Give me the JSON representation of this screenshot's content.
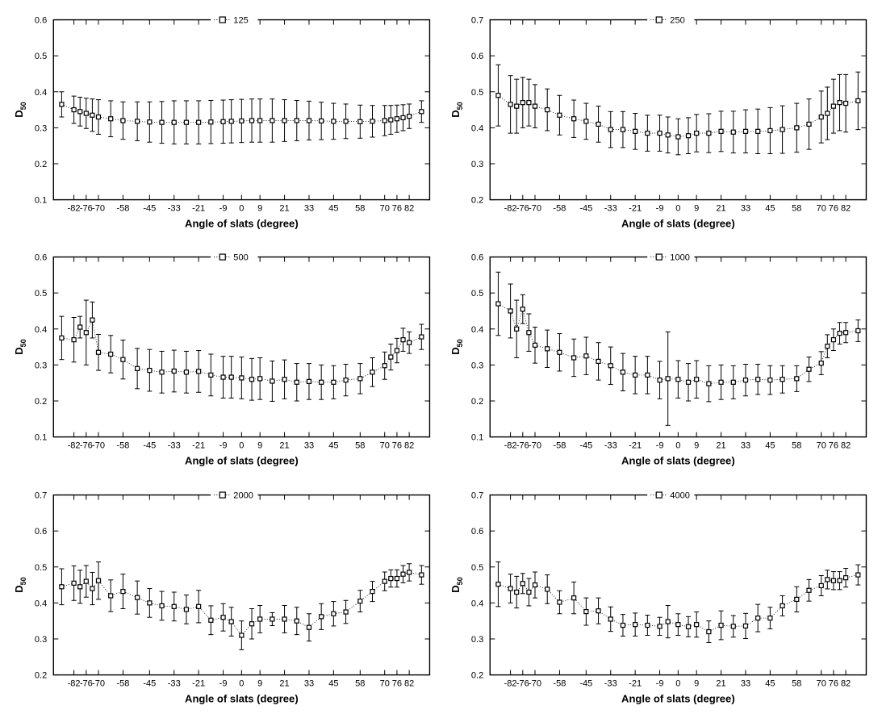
{
  "global": {
    "xlabel": "Angle of slats (degree)",
    "ylabel": "D",
    "ylabel_sub": "50",
    "xtick_labels": [
      "-82",
      "-76",
      "-70",
      "-58",
      "-45",
      "-33",
      "-21",
      "-9",
      "0",
      "9",
      "21",
      "33",
      "45",
      "58",
      "70",
      "76",
      "82"
    ],
    "background_color": "#ffffff",
    "axis_color": "#000000",
    "marker_fill": "#ffffff",
    "marker_stroke": "#000000",
    "marker_size": 5,
    "line_color": "#000000",
    "line_style": "dotted",
    "error_color": "#000000",
    "label_fontsize": 13,
    "tick_fontsize": 11,
    "font_weight_label": "bold"
  },
  "panels": [
    {
      "legend": "125",
      "ylim": [
        0.1,
        0.6
      ],
      "ytick_step": 0.1,
      "x": [
        -88,
        -82,
        -79,
        -76,
        -73,
        -70,
        -64,
        -58,
        -51,
        -45,
        -39,
        -33,
        -27,
        -21,
        -15,
        -9,
        -5,
        0,
        5,
        9,
        15,
        21,
        27,
        33,
        39,
        45,
        51,
        58,
        64,
        70,
        73,
        76,
        79,
        82,
        88
      ],
      "y": [
        0.365,
        0.35,
        0.345,
        0.34,
        0.335,
        0.33,
        0.325,
        0.32,
        0.318,
        0.316,
        0.315,
        0.315,
        0.315,
        0.315,
        0.316,
        0.317,
        0.318,
        0.319,
        0.32,
        0.32,
        0.32,
        0.32,
        0.32,
        0.32,
        0.319,
        0.318,
        0.318,
        0.317,
        0.318,
        0.32,
        0.322,
        0.325,
        0.328,
        0.332,
        0.345
      ],
      "err": [
        0.035,
        0.038,
        0.04,
        0.042,
        0.045,
        0.048,
        0.05,
        0.052,
        0.054,
        0.056,
        0.058,
        0.06,
        0.06,
        0.06,
        0.06,
        0.06,
        0.06,
        0.06,
        0.06,
        0.06,
        0.06,
        0.058,
        0.056,
        0.054,
        0.052,
        0.05,
        0.048,
        0.046,
        0.044,
        0.042,
        0.04,
        0.038,
        0.036,
        0.034,
        0.03
      ]
    },
    {
      "legend": "250",
      "ylim": [
        0.2,
        0.7
      ],
      "ytick_step": 0.1,
      "x": [
        -88,
        -82,
        -79,
        -76,
        -73,
        -70,
        -64,
        -58,
        -51,
        -45,
        -39,
        -33,
        -27,
        -21,
        -15,
        -9,
        -5,
        0,
        5,
        9,
        15,
        21,
        27,
        33,
        39,
        45,
        51,
        58,
        64,
        70,
        73,
        76,
        79,
        82,
        88
      ],
      "y": [
        0.49,
        0.465,
        0.46,
        0.47,
        0.47,
        0.46,
        0.45,
        0.435,
        0.425,
        0.418,
        0.41,
        0.395,
        0.395,
        0.39,
        0.385,
        0.385,
        0.38,
        0.375,
        0.378,
        0.385,
        0.385,
        0.39,
        0.388,
        0.39,
        0.39,
        0.392,
        0.395,
        0.4,
        0.41,
        0.43,
        0.44,
        0.46,
        0.47,
        0.468,
        0.475
      ],
      "err": [
        0.085,
        0.08,
        0.075,
        0.07,
        0.065,
        0.06,
        0.058,
        0.055,
        0.052,
        0.05,
        0.05,
        0.05,
        0.05,
        0.05,
        0.05,
        0.05,
        0.05,
        0.05,
        0.05,
        0.052,
        0.054,
        0.056,
        0.058,
        0.06,
        0.062,
        0.064,
        0.066,
        0.068,
        0.07,
        0.072,
        0.073,
        0.075,
        0.078,
        0.08,
        0.08
      ]
    },
    {
      "legend": "500",
      "ylim": [
        0.1,
        0.6
      ],
      "ytick_step": 0.1,
      "x": [
        -88,
        -82,
        -79,
        -76,
        -73,
        -70,
        -64,
        -58,
        -51,
        -45,
        -39,
        -33,
        -27,
        -21,
        -15,
        -9,
        -5,
        0,
        5,
        9,
        15,
        21,
        27,
        33,
        39,
        45,
        51,
        58,
        64,
        70,
        73,
        76,
        79,
        82,
        88
      ],
      "y": [
        0.375,
        0.37,
        0.405,
        0.39,
        0.425,
        0.335,
        0.33,
        0.315,
        0.29,
        0.285,
        0.28,
        0.283,
        0.28,
        0.282,
        0.272,
        0.266,
        0.266,
        0.264,
        0.26,
        0.262,
        0.255,
        0.26,
        0.252,
        0.254,
        0.252,
        0.252,
        0.258,
        0.262,
        0.28,
        0.298,
        0.322,
        0.34,
        0.37,
        0.362,
        0.378
      ],
      "err": [
        0.06,
        0.062,
        0.03,
        0.09,
        0.05,
        0.05,
        0.052,
        0.054,
        0.056,
        0.058,
        0.058,
        0.058,
        0.058,
        0.058,
        0.058,
        0.058,
        0.058,
        0.058,
        0.058,
        0.058,
        0.056,
        0.054,
        0.052,
        0.05,
        0.048,
        0.046,
        0.044,
        0.042,
        0.04,
        0.038,
        0.036,
        0.034,
        0.032,
        0.03,
        0.035
      ]
    },
    {
      "legend": "1000",
      "ylim": [
        0.1,
        0.6
      ],
      "ytick_step": 0.1,
      "x": [
        -88,
        -82,
        -79,
        -76,
        -73,
        -70,
        -64,
        -58,
        -51,
        -45,
        -39,
        -33,
        -27,
        -21,
        -15,
        -9,
        -5,
        0,
        5,
        9,
        15,
        21,
        27,
        33,
        39,
        45,
        51,
        58,
        64,
        70,
        73,
        76,
        79,
        82,
        88
      ],
      "y": [
        0.47,
        0.45,
        0.4,
        0.455,
        0.39,
        0.355,
        0.345,
        0.335,
        0.32,
        0.325,
        0.31,
        0.298,
        0.28,
        0.272,
        0.272,
        0.258,
        0.262,
        0.26,
        0.252,
        0.26,
        0.248,
        0.252,
        0.252,
        0.258,
        0.26,
        0.258,
        0.26,
        0.262,
        0.288,
        0.305,
        0.352,
        0.37,
        0.388,
        0.39,
        0.395
      ],
      "err": [
        0.088,
        0.075,
        0.08,
        0.04,
        0.052,
        0.05,
        0.052,
        0.052,
        0.052,
        0.052,
        0.052,
        0.052,
        0.052,
        0.052,
        0.052,
        0.052,
        0.13,
        0.052,
        0.052,
        0.052,
        0.05,
        0.048,
        0.046,
        0.044,
        0.042,
        0.04,
        0.038,
        0.036,
        0.034,
        0.032,
        0.032,
        0.03,
        0.03,
        0.028,
        0.03
      ]
    },
    {
      "legend": "2000",
      "ylim": [
        0.2,
        0.7
      ],
      "ytick_step": 0.1,
      "x": [
        -88,
        -82,
        -79,
        -76,
        -73,
        -70,
        -64,
        -58,
        -51,
        -45,
        -39,
        -33,
        -27,
        -21,
        -15,
        -9,
        -5,
        0,
        5,
        9,
        15,
        21,
        27,
        33,
        39,
        45,
        51,
        58,
        64,
        70,
        73,
        76,
        79,
        82,
        88
      ],
      "y": [
        0.445,
        0.455,
        0.445,
        0.46,
        0.44,
        0.462,
        0.42,
        0.432,
        0.415,
        0.4,
        0.392,
        0.39,
        0.382,
        0.39,
        0.352,
        0.36,
        0.348,
        0.31,
        0.342,
        0.355,
        0.355,
        0.355,
        0.35,
        0.332,
        0.362,
        0.37,
        0.375,
        0.405,
        0.432,
        0.46,
        0.468,
        0.468,
        0.48,
        0.485,
        0.478
      ],
      "err": [
        0.05,
        0.048,
        0.046,
        0.044,
        0.045,
        0.052,
        0.044,
        0.048,
        0.046,
        0.04,
        0.04,
        0.04,
        0.04,
        0.045,
        0.04,
        0.038,
        0.04,
        0.04,
        0.042,
        0.038,
        0.018,
        0.038,
        0.038,
        0.038,
        0.036,
        0.034,
        0.032,
        0.03,
        0.028,
        0.026,
        0.024,
        0.024,
        0.024,
        0.024,
        0.026
      ]
    },
    {
      "legend": "4000",
      "ylim": [
        0.2,
        0.7
      ],
      "ytick_step": 0.1,
      "x": [
        -88,
        -82,
        -79,
        -76,
        -73,
        -70,
        -64,
        -58,
        -51,
        -45,
        -39,
        -33,
        -27,
        -21,
        -15,
        -9,
        -5,
        0,
        5,
        9,
        15,
        21,
        27,
        33,
        39,
        45,
        51,
        58,
        64,
        70,
        73,
        76,
        79,
        82,
        88
      ],
      "y": [
        0.452,
        0.44,
        0.43,
        0.454,
        0.43,
        0.45,
        0.438,
        0.402,
        0.414,
        0.376,
        0.378,
        0.355,
        0.338,
        0.34,
        0.338,
        0.335,
        0.348,
        0.34,
        0.334,
        0.34,
        0.32,
        0.338,
        0.335,
        0.336,
        0.358,
        0.358,
        0.392,
        0.41,
        0.435,
        0.448,
        0.465,
        0.462,
        0.462,
        0.47,
        0.478
      ],
      "err": [
        0.062,
        0.04,
        0.044,
        0.028,
        0.038,
        0.036,
        0.04,
        0.032,
        0.044,
        0.038,
        0.036,
        0.034,
        0.03,
        0.032,
        0.028,
        0.025,
        0.045,
        0.03,
        0.028,
        0.035,
        0.03,
        0.04,
        0.03,
        0.035,
        0.038,
        0.03,
        0.028,
        0.035,
        0.03,
        0.028,
        0.026,
        0.025,
        0.025,
        0.026,
        0.028
      ]
    }
  ]
}
